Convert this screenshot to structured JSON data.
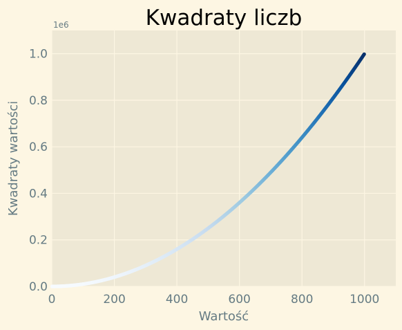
{
  "chart_data": {
    "type": "scatter",
    "title": "Kwadraty liczb",
    "xlabel": "Wartość",
    "ylabel": "Kwadraty wartości",
    "y_offset_label": "1e6",
    "xlim": [
      0,
      1100
    ],
    "ylim": [
      0,
      1100000
    ],
    "x_ticks": [
      0,
      200,
      400,
      600,
      800,
      1000
    ],
    "x_tick_labels": [
      "0",
      "200",
      "400",
      "600",
      "800",
      "1000"
    ],
    "y_ticks": [
      0,
      200000,
      400000,
      600000,
      800000,
      1000000
    ],
    "y_tick_labels": [
      "0.0",
      "0.2",
      "0.4",
      "0.6",
      "0.8",
      "1.0"
    ],
    "x_range": [
      1,
      1000
    ],
    "y_function": "x^2",
    "colormap": "Blues",
    "grid": true
  },
  "colors": {
    "figure_bg": "#fdf6e3",
    "axes_bg": "#eee8d5",
    "grid": "#fdf6e3",
    "text": "#657b83",
    "title": "#000000"
  }
}
